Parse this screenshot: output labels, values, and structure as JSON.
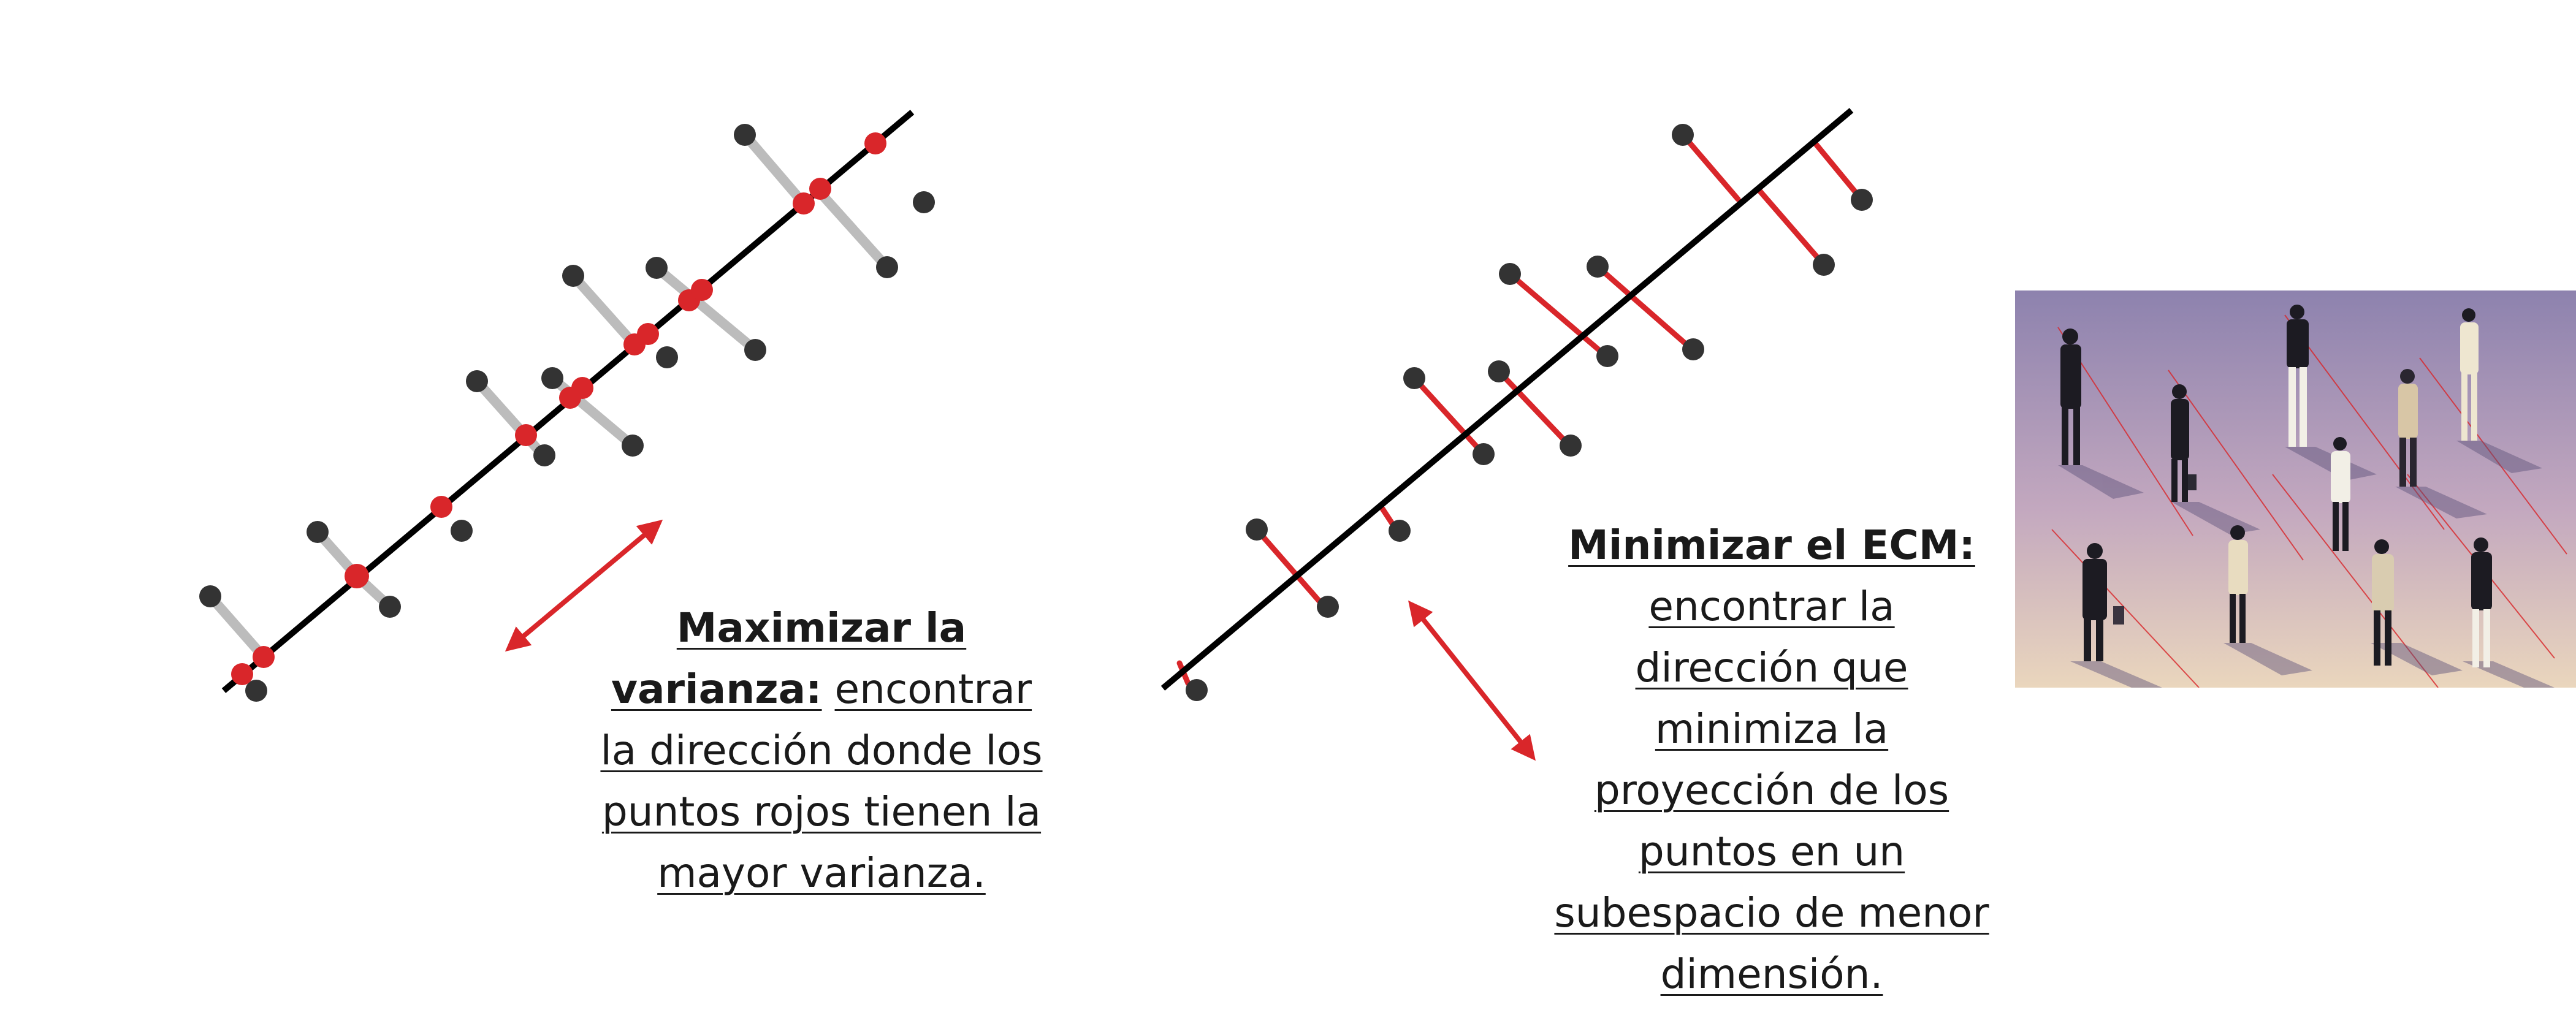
{
  "left_panel": {
    "caption_bold": "Maximizar la varianza:",
    "caption_text": "encontrar la dirección donde los puntos rojos tienen la mayor varianza."
  },
  "right_panel": {
    "caption_bold": "Minimizar el ECM:",
    "caption_text": "encontrar la dirección que minimiza la proyección de los puntos en un subespacio de menor dimensión."
  },
  "photo": {
    "subject": "people casting shadows illustration"
  },
  "colors": {
    "data_point": "#333333",
    "projection_point": "#d9262a",
    "axis_line": "#000000",
    "projection_line_left": "#bcbcbc",
    "projection_line_right": "#d9262a",
    "arrow": "#d9262a"
  }
}
